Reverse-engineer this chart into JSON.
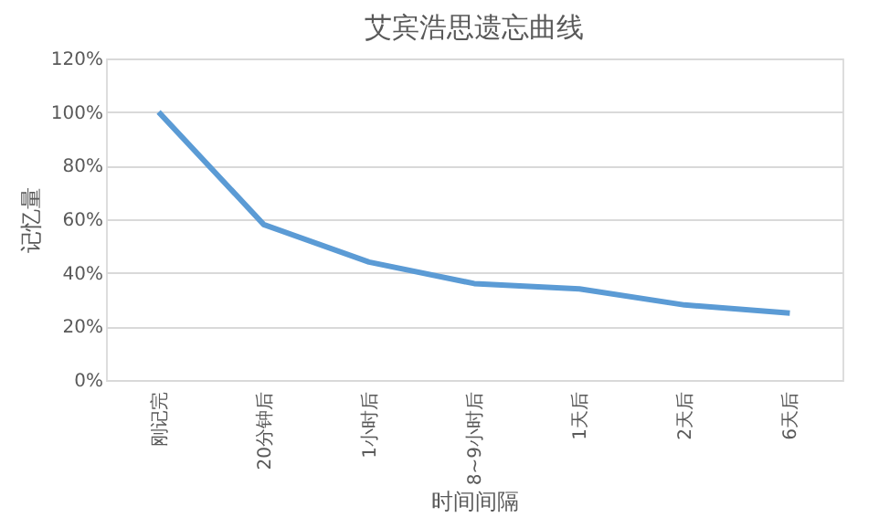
{
  "chart_data": {
    "type": "line",
    "title": "艾宾浩思遗忘曲线",
    "xlabel": "时间间隔",
    "ylabel": "记忆量",
    "categories": [
      "刚记完",
      "20分钟后",
      "1小时后",
      "8~9小时后",
      "1天后",
      "2天后",
      "6天后"
    ],
    "series": [
      {
        "color": "#5b9bd5",
        "values": [
          100,
          58,
          44,
          36,
          34,
          28,
          25
        ]
      }
    ],
    "ylim": [
      0,
      120
    ],
    "yticks": [
      {
        "value": 0,
        "label": "0%"
      },
      {
        "value": 20,
        "label": "20%"
      },
      {
        "value": 40,
        "label": "40%"
      },
      {
        "value": 60,
        "label": "60%"
      },
      {
        "value": 80,
        "label": "80%"
      },
      {
        "value": 100,
        "label": "100%"
      },
      {
        "value": 120,
        "label": "120%"
      }
    ],
    "grid": "y",
    "legend": false,
    "marker": "none",
    "line_style": "solid"
  }
}
